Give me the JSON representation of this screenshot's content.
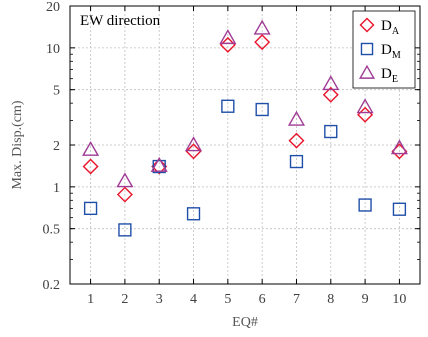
{
  "chart_data": {
    "type": "scatter",
    "annotation": "EW direction",
    "xlabel": "EQ#",
    "ylabel": "Max. Disp.(cm)",
    "yscale": "log",
    "ylim": [
      0.2,
      20
    ],
    "xlim": [
      0.4,
      10.6
    ],
    "grid": true,
    "legend_position": "top-right",
    "x_ticks": [
      "1",
      "2",
      "3",
      "4",
      "5",
      "6",
      "7",
      "8",
      "9",
      "10"
    ],
    "y_ticks": [
      0.2,
      0.5,
      1,
      2,
      5,
      10,
      20
    ],
    "y_tick_labels": [
      "0.2",
      "0.5",
      "1",
      "2",
      "5",
      "10",
      "20"
    ],
    "x": [
      1,
      2,
      3,
      4,
      5,
      6,
      7,
      8,
      9,
      10
    ],
    "series": [
      {
        "name_main": "D",
        "name_sub": "A",
        "marker": "diamond",
        "color": "#e8142a",
        "values": [
          1.4,
          0.88,
          1.4,
          1.8,
          10.5,
          11,
          2.15,
          4.6,
          3.3,
          1.8
        ]
      },
      {
        "name_main": "D",
        "name_sub": "M",
        "marker": "square",
        "color": "#1f4fa8",
        "values": [
          0.7,
          0.49,
          1.4,
          0.64,
          3.8,
          3.6,
          1.52,
          2.5,
          0.74,
          0.69
        ]
      },
      {
        "name_main": "D",
        "name_sub": "E",
        "marker": "triangle",
        "color": "#a03c96",
        "values": [
          1.85,
          1.1,
          1.42,
          2.0,
          11.8,
          13.8,
          3.05,
          5.5,
          3.75,
          1.9
        ]
      }
    ]
  }
}
